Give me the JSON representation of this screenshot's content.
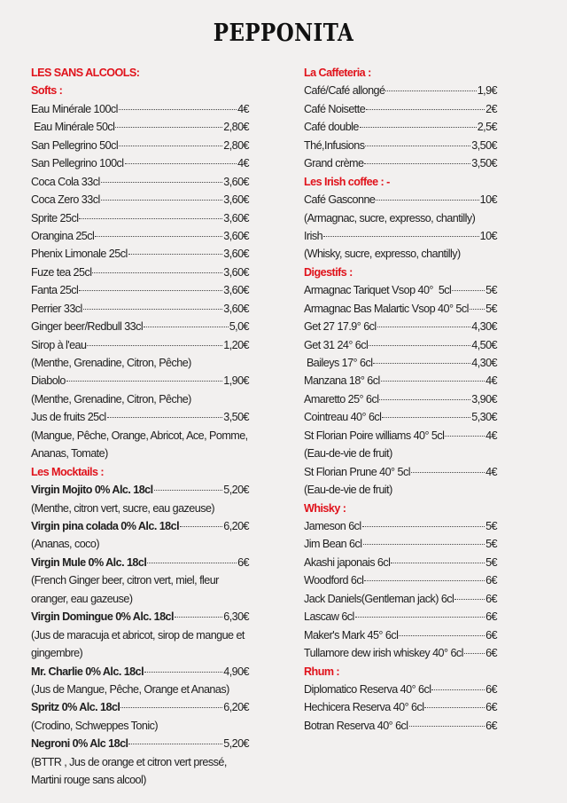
{
  "title": "PEPPONITA",
  "colors": {
    "heading": "#e0121b",
    "text": "#1e1e1e",
    "background": "#f2f0ef"
  },
  "columns": [
    [
      {
        "type": "head",
        "text": "LES SANS ALCOOLS:"
      },
      {
        "type": "head",
        "text": "Softs :"
      },
      {
        "type": "item",
        "name": "Eau Minérale 100cl",
        "price": "4€"
      },
      {
        "type": "item",
        "name": " Eau Minérale 50cl",
        "price": "2,80€"
      },
      {
        "type": "item",
        "name": "San Pellegrino 50cl",
        "price": "2,80€"
      },
      {
        "type": "item",
        "name": "San Pellegrino 100cl",
        "price": "4€"
      },
      {
        "type": "item",
        "name": "Coca Cola 33cl",
        "price": "3,60€"
      },
      {
        "type": "item",
        "name": "Coca Zero 33cl",
        "price": "3,60€"
      },
      {
        "type": "item",
        "name": "Sprite 25cl",
        "price": "3,60€"
      },
      {
        "type": "item",
        "name": "Orangina 25cl",
        "price": "3,60€"
      },
      {
        "type": "item",
        "name": "Phenix Limonale 25cl",
        "price": "3,60€"
      },
      {
        "type": "item",
        "name": "Fuze tea 25cl",
        "price": "3,60€"
      },
      {
        "type": "item",
        "name": "Fanta 25cl",
        "price": "3,60€"
      },
      {
        "type": "item",
        "name": "Perrier 33cl",
        "price": "3,60€"
      },
      {
        "type": "item",
        "name": "Ginger beer/Redbull 33cl",
        "price": "5,0€"
      },
      {
        "type": "item",
        "name": "Sirop à l'eau",
        "price": "1,20€"
      },
      {
        "type": "desc",
        "text": "(Menthe, Grenadine, Citron, Pêche)"
      },
      {
        "type": "item",
        "name": "Diabolo",
        "price": "1,90€"
      },
      {
        "type": "desc",
        "text": "(Menthe, Grenadine, Citron, Pêche)"
      },
      {
        "type": "item",
        "name": "Jus de fruits 25cl",
        "price": "3,50€"
      },
      {
        "type": "desc",
        "text": "(Mangue, Pêche, Orange, Abricot, Ace, Pomme, Ananas, Tomate)"
      },
      {
        "type": "head",
        "text": "Les Mocktails :"
      },
      {
        "type": "item",
        "bold": true,
        "name": "Virgin Mojito 0% Alc. 18cl",
        "price": "5,20€"
      },
      {
        "type": "desc",
        "text": "(Menthe, citron vert, sucre, eau gazeuse)"
      },
      {
        "type": "item",
        "bold": true,
        "name": "Virgin pina colada 0% Alc. 18cl",
        "price": "6,20€"
      },
      {
        "type": "desc",
        "text": "(Ananas, coco)"
      },
      {
        "type": "item",
        "bold": true,
        "name": "Virgin Mule 0% Alc. 18cl",
        "price": "6€"
      },
      {
        "type": "desc",
        "text": "(French Ginger beer, citron vert, miel, fleur oranger, eau gazeuse)"
      },
      {
        "type": "item",
        "bold": true,
        "name": "Virgin Domingue 0% Alc. 18cl",
        "price": "6,30€"
      },
      {
        "type": "desc",
        "text": "(Jus de maracuja et abricot, sirop de mangue et gingembre)"
      },
      {
        "type": "item",
        "bold": true,
        "name": "Mr. Charlie 0% Alc. 18cl",
        "price": "4,90€"
      },
      {
        "type": "desc",
        "text": "(Jus de Mangue, Pêche, Orange et Ananas)"
      },
      {
        "type": "item",
        "bold": true,
        "name": "Spritz 0% Alc. 18cl",
        "price": "6,20€"
      },
      {
        "type": "desc",
        "text": "(Crodino, Schweppes Tonic)"
      },
      {
        "type": "item",
        "bold": true,
        "name": "Negroni 0% Alc 18cl",
        "price": "5,20€"
      },
      {
        "type": "desc",
        "text": "(BTTR , Jus de orange et citron vert pressé, Martini rouge sans alcool)"
      }
    ],
    [
      {
        "type": "head",
        "text": "La Caffeteria :"
      },
      {
        "type": "item",
        "name": "Café/Café allongé",
        "price": "1,9€"
      },
      {
        "type": "item",
        "name": "Café Noisette",
        "price": "2€"
      },
      {
        "type": "item",
        "name": "Café double",
        "price": "2,5€"
      },
      {
        "type": "item",
        "name": "Thé,Infusions",
        "price": "3,50€"
      },
      {
        "type": "item",
        "name": "Grand crème",
        "price": "3,50€"
      },
      {
        "type": "head",
        "text": "Les Irish coffee : -"
      },
      {
        "type": "item",
        "name": "Café Gasconne",
        "price": "10€"
      },
      {
        "type": "desc",
        "text": "(Armagnac, sucre, expresso, chantilly)"
      },
      {
        "type": "item",
        "name": "Irish",
        "price": "10€"
      },
      {
        "type": "desc",
        "text": "(Whisky, sucre, expresso, chantilly)"
      },
      {
        "type": "head",
        "text": "Digestifs :"
      },
      {
        "type": "item",
        "name": "Armagnac Tariquet Vsop 40°  5cl",
        "price": "5€"
      },
      {
        "type": "item",
        "name": "Armagnac Bas Malartic Vsop 40° 5cl",
        "price": "5€"
      },
      {
        "type": "item",
        "name": "Get 27 17.9° 6cl",
        "price": "4,30€"
      },
      {
        "type": "item",
        "name": "Get 31 24° 6cl",
        "price": "4,50€"
      },
      {
        "type": "item",
        "name": " Baileys 17° 6cl",
        "price": "4,30€"
      },
      {
        "type": "item",
        "name": "Manzana 18° 6cl",
        "price": "4€"
      },
      {
        "type": "item",
        "name": "Amaretto 25° 6cl",
        "price": "3,90€"
      },
      {
        "type": "item",
        "name": "Cointreau 40° 6cl",
        "price": "5,30€"
      },
      {
        "type": "item",
        "name": "St Florian Poire williams 40° 5cl",
        "price": "4€"
      },
      {
        "type": "desc",
        "text": "(Eau-de-vie de fruit)"
      },
      {
        "type": "item",
        "name": "St Florian Prune 40° 5cl",
        "price": "4€"
      },
      {
        "type": "desc",
        "text": " (Eau-de-vie de fruit)"
      },
      {
        "type": "head",
        "text": "Whisky :"
      },
      {
        "type": "item",
        "name": "Jameson 6cl",
        "price": "5€"
      },
      {
        "type": "item",
        "name": "Jim Bean 6cl",
        "price": "5€"
      },
      {
        "type": "item",
        "name": "Akashi japonais 6cl",
        "price": "5€"
      },
      {
        "type": "item",
        "name": "Woodford 6cl",
        "price": "6€"
      },
      {
        "type": "item",
        "name": "Jack Daniels(Gentleman jack) 6cl",
        "price": "6€"
      },
      {
        "type": "item",
        "name": "Lascaw 6cl",
        "price": "6€"
      },
      {
        "type": "item",
        "name": "Maker's Mark 45° 6cl",
        "price": "6€"
      },
      {
        "type": "item",
        "name": "Tullamore dew irish whiskey 40° 6cl",
        "price": "6€"
      },
      {
        "type": "head",
        "text": "Rhum :"
      },
      {
        "type": "item",
        "name": "Diplomatico Reserva 40° 6cl",
        "price": "6€"
      },
      {
        "type": "item",
        "name": "Hechicera Reserva 40° 6cl",
        "price": "6€"
      },
      {
        "type": "item",
        "name": "Botran Reserva 40° 6cl",
        "price": "6€"
      }
    ]
  ]
}
